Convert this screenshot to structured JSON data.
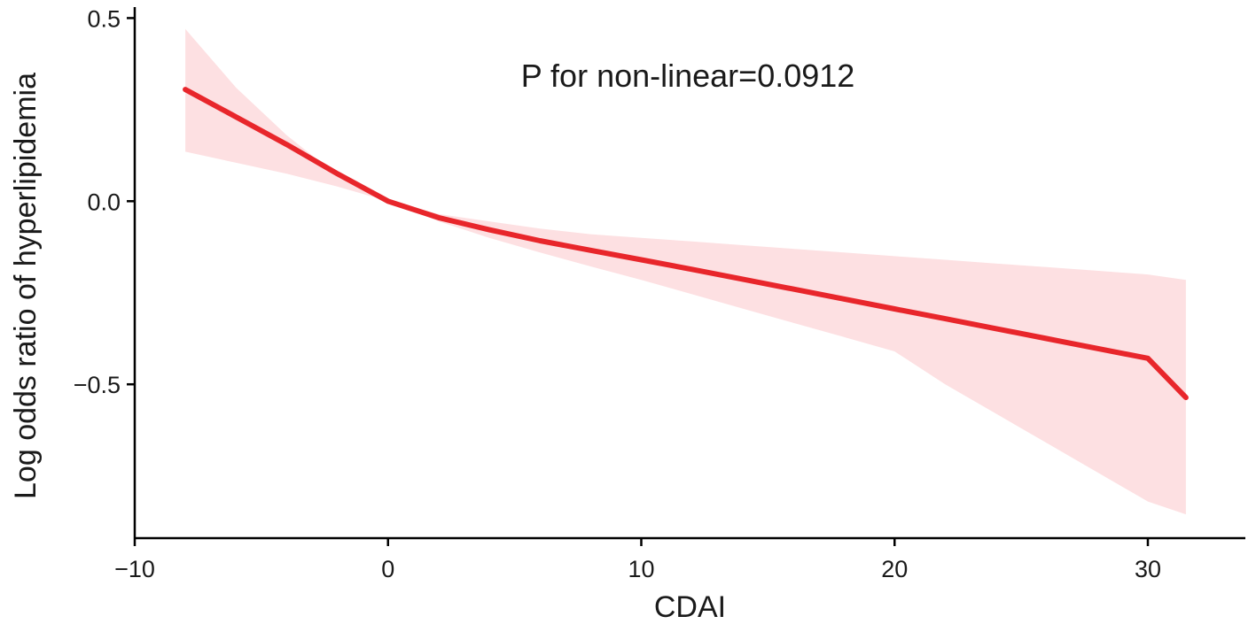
{
  "chart_data": {
    "type": "line",
    "title": "",
    "xlabel": "CDAI",
    "ylabel": "Log odds ratio of hyperlipidemia",
    "annotation": "P for non-linear=0.0912",
    "xlim": [
      -10,
      33.5
    ],
    "ylim": [
      -0.92,
      0.53
    ],
    "x_ticks": [
      -10,
      0,
      10,
      20,
      30
    ],
    "x_tick_labels": [
      "−10",
      "0",
      "10",
      "20",
      "30"
    ],
    "y_ticks": [
      0.5,
      0.0,
      -0.5
    ],
    "y_tick_labels": [
      "0.5",
      "0.0",
      "−0.5"
    ],
    "grid": false,
    "legend": "none",
    "colors": {
      "line": "#e8262b",
      "band": "#fde0e2"
    },
    "series": [
      {
        "x": [
          -8,
          -6,
          -4,
          -2,
          0,
          2,
          4,
          6,
          8,
          10,
          12,
          14,
          16,
          18,
          20,
          22,
          24,
          26,
          28,
          30,
          31.5
        ],
        "y": [
          0.305,
          0.23,
          0.155,
          0.075,
          0.0,
          -0.045,
          -0.078,
          -0.108,
          -0.134,
          -0.16,
          -0.186,
          -0.213,
          -0.24,
          -0.267,
          -0.294,
          -0.321,
          -0.348,
          -0.375,
          -0.402,
          -0.429,
          -0.536
        ],
        "ci_upper": [
          0.47,
          0.31,
          0.18,
          0.07,
          0.0,
          -0.035,
          -0.055,
          -0.075,
          -0.09,
          -0.1,
          -0.11,
          -0.12,
          -0.13,
          -0.14,
          -0.15,
          -0.16,
          -0.17,
          -0.18,
          -0.19,
          -0.2,
          -0.215
        ],
        "ci_lower": [
          0.135,
          0.105,
          0.075,
          0.04,
          0.0,
          -0.055,
          -0.1,
          -0.14,
          -0.178,
          -0.215,
          -0.254,
          -0.293,
          -0.332,
          -0.371,
          -0.41,
          -0.5,
          -0.58,
          -0.66,
          -0.74,
          -0.82,
          -0.855
        ]
      }
    ]
  }
}
